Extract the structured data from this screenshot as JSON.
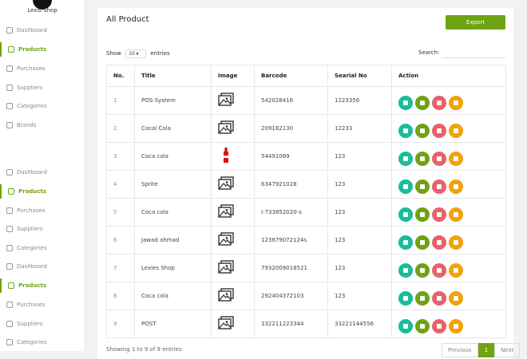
{
  "sidebar": {
    "brand": "Lexis Shop",
    "menu": [
      "Dashboard",
      "Products",
      "Purchases",
      "Suppliers",
      "Categories",
      "Brands",
      "Dashboard",
      "Products",
      "Purchases",
      "Suppliers",
      "Categories",
      "Dashboard",
      "Products",
      "Purchases",
      "Suppliers",
      "Categories"
    ]
  },
  "page": {
    "title": "All Product",
    "export": "Export",
    "show": "Show",
    "entries_select": "10",
    "entries": "entries",
    "search": "Search:"
  },
  "table": {
    "headers": [
      "No.",
      "Title",
      "Image",
      "Barcode",
      "Searial No",
      "Action"
    ],
    "rows": [
      [
        "1",
        "POS-System",
        "542028416",
        "1223356"
      ],
      [
        "2",
        "Cocal Cola",
        "209182130",
        "12233"
      ],
      [
        "3",
        "Coca cola",
        "54491069",
        "123"
      ],
      [
        "4",
        "Sprite",
        "6347921028",
        "123"
      ],
      [
        "5",
        "Coca cola",
        "I-733852020-s",
        "123"
      ],
      [
        "6",
        "Jawad ahmad",
        "123879072124s",
        "123"
      ],
      [
        "7",
        "Lexies Shop",
        "7932009018521",
        "123"
      ],
      [
        "8",
        "Coca cola",
        "292404372103",
        "123"
      ],
      [
        "9",
        "POST",
        "332211223344",
        "33221144556"
      ]
    ]
  },
  "footer": {
    "info": "Showing 1 to 9 of 9 entries",
    "pagination": [
      "Previous",
      "1",
      "Next"
    ]
  }
}
